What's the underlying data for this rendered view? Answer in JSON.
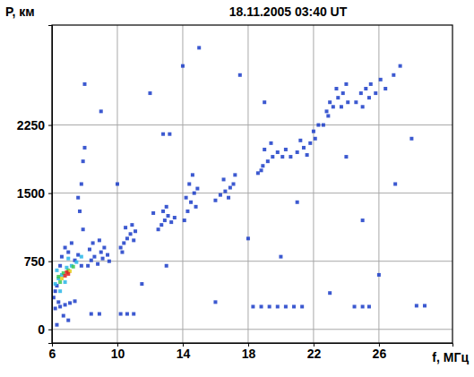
{
  "chart_data": {
    "type": "scatter",
    "title": "18.11.2005 03:40 UT",
    "x_label": "f, МГц",
    "y_label": "P, км",
    "xlim": [
      6,
      30.5
    ],
    "ylim": [
      -150,
      3350
    ],
    "xticks": [
      6,
      10,
      14,
      18,
      22,
      26
    ],
    "yticks": [
      0,
      750,
      1500,
      2250
    ],
    "grid": true,
    "series": [
      {
        "color": "#1a3cc8",
        "marker": "square",
        "x": [
          6.2,
          6.3,
          6.5,
          6.6,
          6.8,
          7.0,
          7.2,
          7.4,
          7.6,
          6.1,
          6.4,
          6.7,
          7.0,
          6.3,
          7.8,
          7.9,
          7.7,
          7.8,
          7.9,
          8.0,
          7.6,
          8.2,
          8.4,
          8.6,
          8.8,
          9.0,
          9.2,
          9.4,
          8.5,
          8.9,
          9.5,
          8.3,
          9.1,
          10.2,
          10.4,
          10.6,
          10.8,
          11.0,
          10.5,
          10.9,
          10.3,
          11.1,
          12.5,
          12.7,
          12.9,
          13.1,
          13.3,
          13.0,
          12.8,
          13.5,
          12.2,
          12.8,
          13.2,
          14.1,
          14.3,
          14.5,
          14.7,
          14.4,
          14.6,
          14.8,
          14.2,
          14.9,
          16.0,
          16.3,
          16.6,
          16.9,
          17.1,
          16.5,
          16.8,
          17.2,
          18.6,
          18.9,
          19.2,
          19.5,
          19.8,
          19.0,
          19.4,
          20.1,
          18.8,
          20.3,
          20.6,
          21.0,
          21.4,
          21.8,
          22.1,
          21.2,
          22.3,
          22.0,
          21.6,
          22.6,
          22.9,
          23.2,
          23.5,
          23.8,
          24.0,
          23.0,
          23.4,
          22.8,
          23.7,
          24.1,
          24.6,
          24.9,
          25.2,
          25.5,
          25.8,
          26.1,
          25.0,
          25.4,
          26.4,
          26.9,
          27.3,
          12.0,
          15.0,
          17.5,
          11.5,
          20.0,
          25.0,
          9.0,
          27.0,
          16.0,
          23.0,
          28.0,
          14.0,
          19.0,
          10.0,
          26.0,
          21.0,
          13.0,
          8.0,
          18.0,
          24.0,
          10.2,
          10.6,
          11.0,
          18.3,
          18.8,
          19.3,
          19.8,
          20.3,
          20.8,
          21.3,
          24.5,
          25.0,
          25.4,
          28.3,
          28.8,
          8.4,
          8.9,
          6.2,
          6.5,
          6.8,
          7.1,
          7.4
        ],
        "values": [
          420,
          480,
          700,
          800,
          900,
          850,
          950,
          760,
          820,
          350,
          300,
          150,
          100,
          50,
          700,
          1100,
          1300,
          1600,
          1850,
          2000,
          1450,
          700,
          760,
          800,
          720,
          850,
          900,
          820,
          950,
          980,
          750,
          880,
          780,
          900,
          950,
          1000,
          1050,
          980,
          1120,
          1150,
          850,
          1080,
          1100,
          1150,
          1200,
          1250,
          1180,
          1350,
          1300,
          1230,
          1280,
          2150,
          2150,
          1200,
          1300,
          1400,
          1500,
          1600,
          1700,
          1350,
          1450,
          1550,
          1420,
          1480,
          1520,
          1560,
          1600,
          1650,
          1450,
          1700,
          1720,
          1800,
          1850,
          1900,
          1950,
          1980,
          2050,
          1900,
          1750,
          1980,
          1900,
          1950,
          2000,
          2050,
          2100,
          2080,
          2250,
          2180,
          1920,
          2250,
          2350,
          2450,
          2550,
          2600,
          2700,
          2500,
          2650,
          2400,
          2450,
          2500,
          2500,
          2600,
          2650,
          2700,
          2600,
          2750,
          2450,
          2550,
          2650,
          2800,
          2900,
          2600,
          3100,
          2800,
          500,
          800,
          1200,
          2400,
          1600,
          300,
          400,
          2100,
          2900,
          2500,
          1600,
          600,
          1400,
          700,
          2700,
          1000,
          1900,
          170,
          170,
          170,
          250,
          250,
          250,
          250,
          250,
          250,
          250,
          250,
          250,
          250,
          260,
          260,
          170,
          170,
          230,
          250,
          270,
          290,
          310
        ]
      },
      {
        "color": "#29b6e8",
        "marker": "square",
        "x": [
          6.2,
          6.4,
          6.6,
          6.9,
          7.2,
          7.5,
          6.3,
          6.8,
          7.0,
          7.8,
          6.5
        ],
        "values": [
          500,
          560,
          600,
          680,
          700,
          740,
          650,
          520,
          780,
          800,
          420
        ]
      },
      {
        "color": "#3cc850",
        "marker": "square",
        "x": [
          6.4,
          6.7,
          7.0,
          6.5,
          7.3
        ],
        "values": [
          580,
          620,
          650,
          520,
          690
        ]
      },
      {
        "color": "#e8d020",
        "marker": "square",
        "x": [
          6.6,
          7.1
        ],
        "values": [
          560,
          640
        ]
      },
      {
        "color": "#e0201c",
        "marker": "square",
        "x": [
          6.8,
          7.0,
          6.9
        ],
        "values": [
          590,
          610,
          630
        ]
      }
    ]
  }
}
